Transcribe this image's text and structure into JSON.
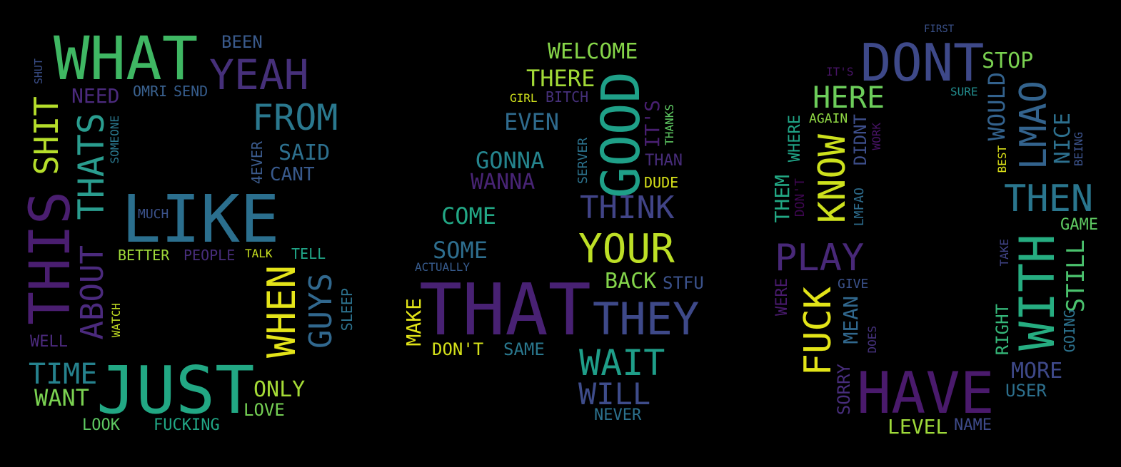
{
  "words": [
    {
      "text": "WHAT",
      "color": "#3fb763"
    },
    {
      "text": "BEEN",
      "color": "#3a5a8c"
    },
    {
      "text": "YEAH",
      "color": "#46307a"
    },
    {
      "text": "SHUT",
      "color": "#3b4f8a"
    },
    {
      "text": "NEED",
      "color": "#4b2a7d"
    },
    {
      "text": "OMRI",
      "color": "#3a6290"
    },
    {
      "text": "SEND",
      "color": "#365d8d"
    },
    {
      "text": "FROM",
      "color": "#2a788e"
    },
    {
      "text": "SHIT",
      "color": "#b5de2b"
    },
    {
      "text": "THATS",
      "color": "#2a9d8f"
    },
    {
      "text": "SOMEONE",
      "color": "#2a788e"
    },
    {
      "text": "4EVER",
      "color": "#3b5b8d"
    },
    {
      "text": "SAID",
      "color": "#2d708e"
    },
    {
      "text": "CANT",
      "color": "#38598c"
    },
    {
      "text": "THIS",
      "color": "#4a1e70"
    },
    {
      "text": "LIKE",
      "color": "#2b6f8e"
    },
    {
      "text": "MUCH",
      "color": "#3b528b"
    },
    {
      "text": "ABOUT",
      "color": "#4b2a7d"
    },
    {
      "text": "BETTER",
      "color": "#9fda3a"
    },
    {
      "text": "PEOPLE",
      "color": "#472d7b"
    },
    {
      "text": "TALK",
      "color": "#c8e020"
    },
    {
      "text": "TELL",
      "color": "#20a486"
    },
    {
      "text": "WHEN",
      "color": "#e4e419"
    },
    {
      "text": "GUYS",
      "color": "#31688e"
    },
    {
      "text": "SLEEP",
      "color": "#2c728e"
    },
    {
      "text": "WATCH",
      "color": "#c2df23"
    },
    {
      "text": "WELL",
      "color": "#4b2a7d"
    },
    {
      "text": "TIME",
      "color": "#26828e"
    },
    {
      "text": "JUST",
      "color": "#22a884"
    },
    {
      "text": "WANT",
      "color": "#7ad151"
    },
    {
      "text": "ONLY",
      "color": "#a5db36"
    },
    {
      "text": "LOVE",
      "color": "#75d054"
    },
    {
      "text": "LOOK",
      "color": "#5ec962"
    },
    {
      "text": "FUCKING",
      "color": "#21a685"
    },
    {
      "text": "WELCOME",
      "color": "#86d549"
    },
    {
      "text": "THERE",
      "color": "#a2da37"
    },
    {
      "text": "GOOD",
      "color": "#1fa088"
    },
    {
      "text": "GIRL",
      "color": "#cfe11c"
    },
    {
      "text": "BITCH",
      "color": "#46307a"
    },
    {
      "text": "EVEN",
      "color": "#2f6b8e"
    },
    {
      "text": "IT'S",
      "color": "#481f70"
    },
    {
      "text": "THANKS",
      "color": "#5ec962"
    },
    {
      "text": "GONNA",
      "color": "#25858e"
    },
    {
      "text": "SERVER",
      "color": "#2c738e"
    },
    {
      "text": "THAN",
      "color": "#472c7a"
    },
    {
      "text": "WANNA",
      "color": "#482475"
    },
    {
      "text": "DUDE",
      "color": "#d8e219"
    },
    {
      "text": "THINK",
      "color": "#414487"
    },
    {
      "text": "COME",
      "color": "#22a785"
    },
    {
      "text": "YOUR",
      "color": "#bddf26"
    },
    {
      "text": "SOME",
      "color": "#2e6e8e"
    },
    {
      "text": "ACTUALLY",
      "color": "#375b8d"
    },
    {
      "text": "BACK",
      "color": "#84d44b"
    },
    {
      "text": "STFU",
      "color": "#3b528b"
    },
    {
      "text": "MAKE",
      "color": "#e1e318"
    },
    {
      "text": "THAT",
      "color": "#482173"
    },
    {
      "text": "THEY",
      "color": "#3e4989"
    },
    {
      "text": "DON'T",
      "color": "#d5e21a"
    },
    {
      "text": "SAME",
      "color": "#2a788e"
    },
    {
      "text": "WAIT",
      "color": "#1f9e89"
    },
    {
      "text": "WILL",
      "color": "#3e4c8a"
    },
    {
      "text": "NEVER",
      "color": "#2c718e"
    },
    {
      "text": "FIRST",
      "color": "#3b528b"
    },
    {
      "text": "DONT",
      "color": "#3e4989"
    },
    {
      "text": "STOP",
      "color": "#7ad151"
    },
    {
      "text": "IT'S",
      "color": "#481467"
    },
    {
      "text": "HERE",
      "color": "#6ccd5a"
    },
    {
      "text": "SURE",
      "color": "#228c8d"
    },
    {
      "text": "AGAIN",
      "color": "#8fd744"
    },
    {
      "text": "WOULD",
      "color": "#33628d"
    },
    {
      "text": "LMAO",
      "color": "#33638d"
    },
    {
      "text": "WHERE",
      "color": "#20a386"
    },
    {
      "text": "KNOW",
      "color": "#cde11d"
    },
    {
      "text": "DIDNT",
      "color": "#3d4e8a"
    },
    {
      "text": "WORK",
      "color": "#471365"
    },
    {
      "text": "NICE",
      "color": "#2d708e"
    },
    {
      "text": "BEST",
      "color": "#dde318"
    },
    {
      "text": "BEING",
      "color": "#3b528b"
    },
    {
      "text": "THEM",
      "color": "#22a884"
    },
    {
      "text": "DON'T",
      "color": "#3e0751"
    },
    {
      "text": "LMFAO",
      "color": "#2e6d8e"
    },
    {
      "text": "THEN",
      "color": "#2a768e"
    },
    {
      "text": "GAME",
      "color": "#5ec962"
    },
    {
      "text": "PLAY",
      "color": "#482878"
    },
    {
      "text": "TAKE",
      "color": "#414487"
    },
    {
      "text": "WITH",
      "color": "#26ad81"
    },
    {
      "text": "STILL",
      "color": "#4ac16d"
    },
    {
      "text": "GIVE",
      "color": "#3b528b"
    },
    {
      "text": "WERE",
      "color": "#481a6c"
    },
    {
      "text": "FUCK",
      "color": "#e2e418"
    },
    {
      "text": "MEAN",
      "color": "#31688e"
    },
    {
      "text": "RIGHT",
      "color": "#35b779"
    },
    {
      "text": "GOING",
      "color": "#2c728e"
    },
    {
      "text": "DOES",
      "color": "#46327e"
    },
    {
      "text": "MORE",
      "color": "#3e4989"
    },
    {
      "text": "SORRY",
      "color": "#472d7b"
    },
    {
      "text": "HAVE",
      "color": "#4a1a6c"
    },
    {
      "text": "USER",
      "color": "#2d708e"
    },
    {
      "text": "LEVEL",
      "color": "#9fda3a"
    },
    {
      "text": "NAME",
      "color": "#3e4a89"
    }
  ]
}
